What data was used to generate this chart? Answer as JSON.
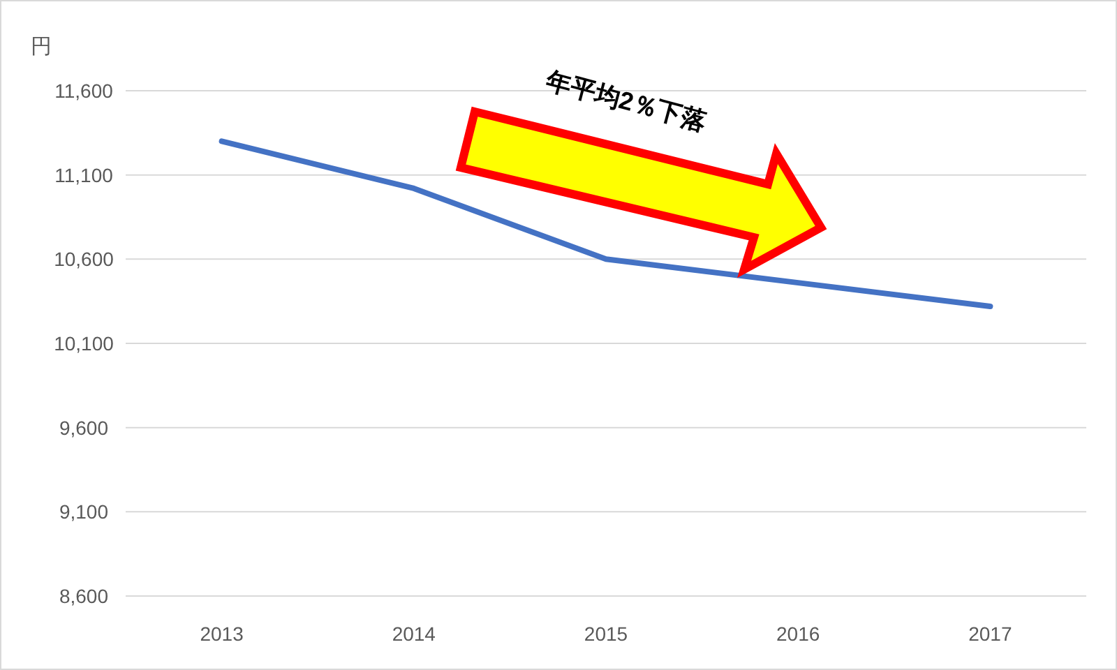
{
  "chart_data": {
    "type": "line",
    "ylabel": "円",
    "categories": [
      "2013",
      "2014",
      "2015",
      "2016",
      "2017"
    ],
    "series": [
      {
        "color": "#4472c4",
        "values": [
          11300,
          11020,
          10600,
          10460,
          10320
        ]
      }
    ],
    "ylim": [
      8600,
      11600
    ],
    "yticks": [
      {
        "value": 8600,
        "label": "8,600"
      },
      {
        "value": 9100,
        "label": "9,100"
      },
      {
        "value": 9600,
        "label": "9,600"
      },
      {
        "value": 10100,
        "label": "10,100"
      },
      {
        "value": 10600,
        "label": "10,600"
      },
      {
        "value": 11100,
        "label": "11,100"
      },
      {
        "value": 11600,
        "label": "11,600"
      }
    ],
    "grid": "y",
    "marker": "none",
    "line_style": "solid",
    "annotations": [
      "年平均2％下落"
    ]
  }
}
